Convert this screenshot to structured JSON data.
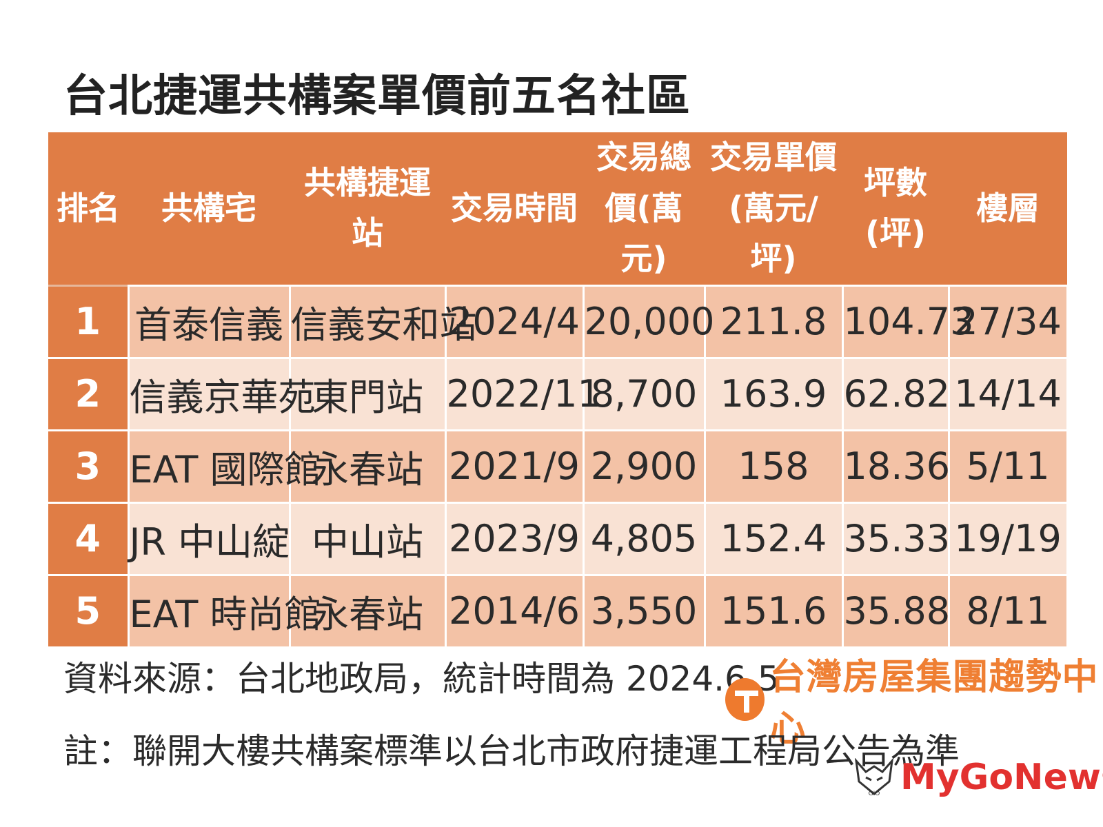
{
  "title": "台北捷運共構案單價前五名社區",
  "chart_data": {
    "type": "table",
    "title": "台北捷運共構案單價前五名社區",
    "columns": [
      {
        "lines": [
          "排名"
        ]
      },
      {
        "lines": [
          "共構宅"
        ]
      },
      {
        "lines": [
          "共構捷運站"
        ]
      },
      {
        "lines": [
          "交易時間"
        ]
      },
      {
        "lines": [
          "交易總",
          "價(萬元)"
        ]
      },
      {
        "lines": [
          "交易單價",
          "(萬元/坪)"
        ]
      },
      {
        "lines": [
          "坪數",
          "(坪)"
        ]
      },
      {
        "lines": [
          "樓層"
        ]
      }
    ],
    "rows": [
      [
        "1",
        "首泰信義",
        "信義安和站",
        "2024/4",
        "20,000",
        "211.8",
        "104.73",
        "27/34"
      ],
      [
        "2",
        "信義京華苑",
        "東門站",
        "2022/11",
        "8,700",
        "163.9",
        "62.82",
        "14/14"
      ],
      [
        "3",
        "EAT 國際館",
        "永春站",
        "2021/9",
        "2,900",
        "158",
        "18.36",
        "5/11"
      ],
      [
        "4",
        "JR 中山綻",
        "中山站",
        "2023/9",
        "4,805",
        "152.4",
        "35.33",
        "19/19"
      ],
      [
        "5",
        "EAT 時尚館",
        "永春站",
        "2014/6",
        "3,550",
        "151.6",
        "35.88",
        "8/11"
      ]
    ]
  },
  "source": "資料來源：台北地政局，統計時間為 2024.6.5",
  "note": "註：聯開大樓共構案標準以台北市政府捷運工程局公告為準",
  "brand": "台灣房屋集團趨勢中心",
  "watermark": "MyGoNews",
  "watermark_icon_text": "GIO",
  "colors": {
    "header": "#e07d45",
    "row_dark": "#f3c2a6",
    "row_light": "#f9e2d4",
    "brand": "#ef7f33",
    "watermark": "#e2312f"
  }
}
